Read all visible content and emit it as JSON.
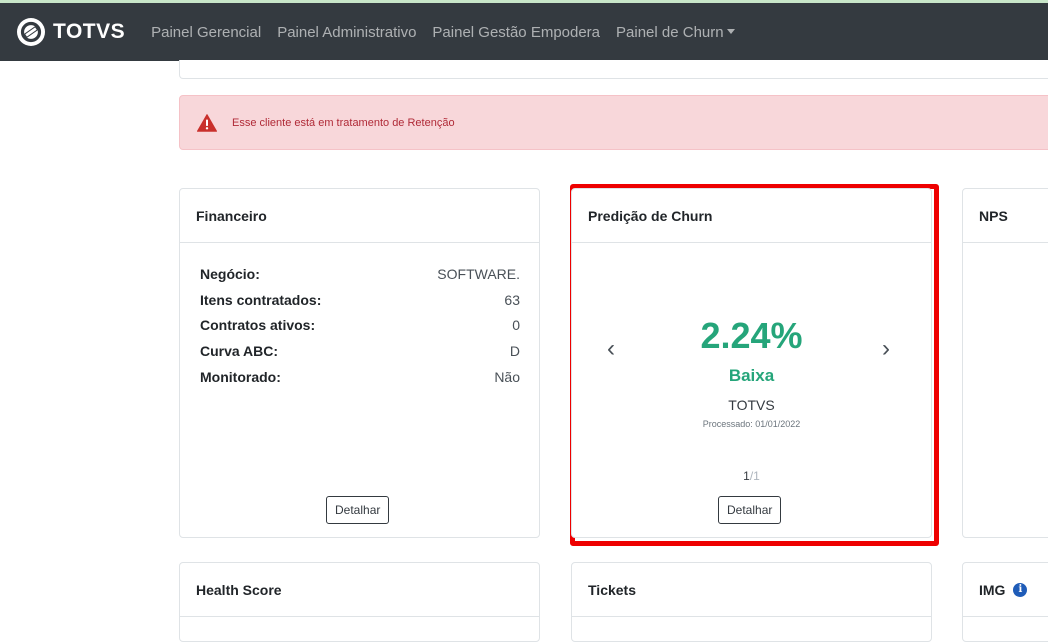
{
  "brand": {
    "name": "TOTVS"
  },
  "nav": {
    "items": [
      {
        "label": "Painel Gerencial"
      },
      {
        "label": "Painel Administrativo"
      },
      {
        "label": "Painel Gestão Empodera"
      },
      {
        "label": "Painel de Churn"
      }
    ]
  },
  "alert": {
    "text": "Esse cliente está em tratamento de Retenção",
    "color": "#f8d7da"
  },
  "financeiro": {
    "title": "Financeiro",
    "rows": [
      {
        "label": "Negócio:",
        "value": "SOFTWARE."
      },
      {
        "label": "Itens contratados:",
        "value": "63"
      },
      {
        "label": "Contratos ativos:",
        "value": "0"
      },
      {
        "label": "Curva ABC:",
        "value": "D"
      },
      {
        "label": "Monitorado:",
        "value": "Não"
      }
    ],
    "button": "Detalhar"
  },
  "churn": {
    "title": "Predição de Churn",
    "percentage": "2.24%",
    "level": "Baixa",
    "company": "TOTVS",
    "processed": "Processado: 01/01/2022",
    "page_current": "1",
    "page_total": "/1",
    "button": "Detalhar",
    "accent": "#25a57a",
    "highlight": "#ee0000"
  },
  "nps": {
    "title": "NPS"
  },
  "health": {
    "title": "Health Score"
  },
  "tickets": {
    "title": "Tickets"
  },
  "img": {
    "title": "IMG"
  }
}
